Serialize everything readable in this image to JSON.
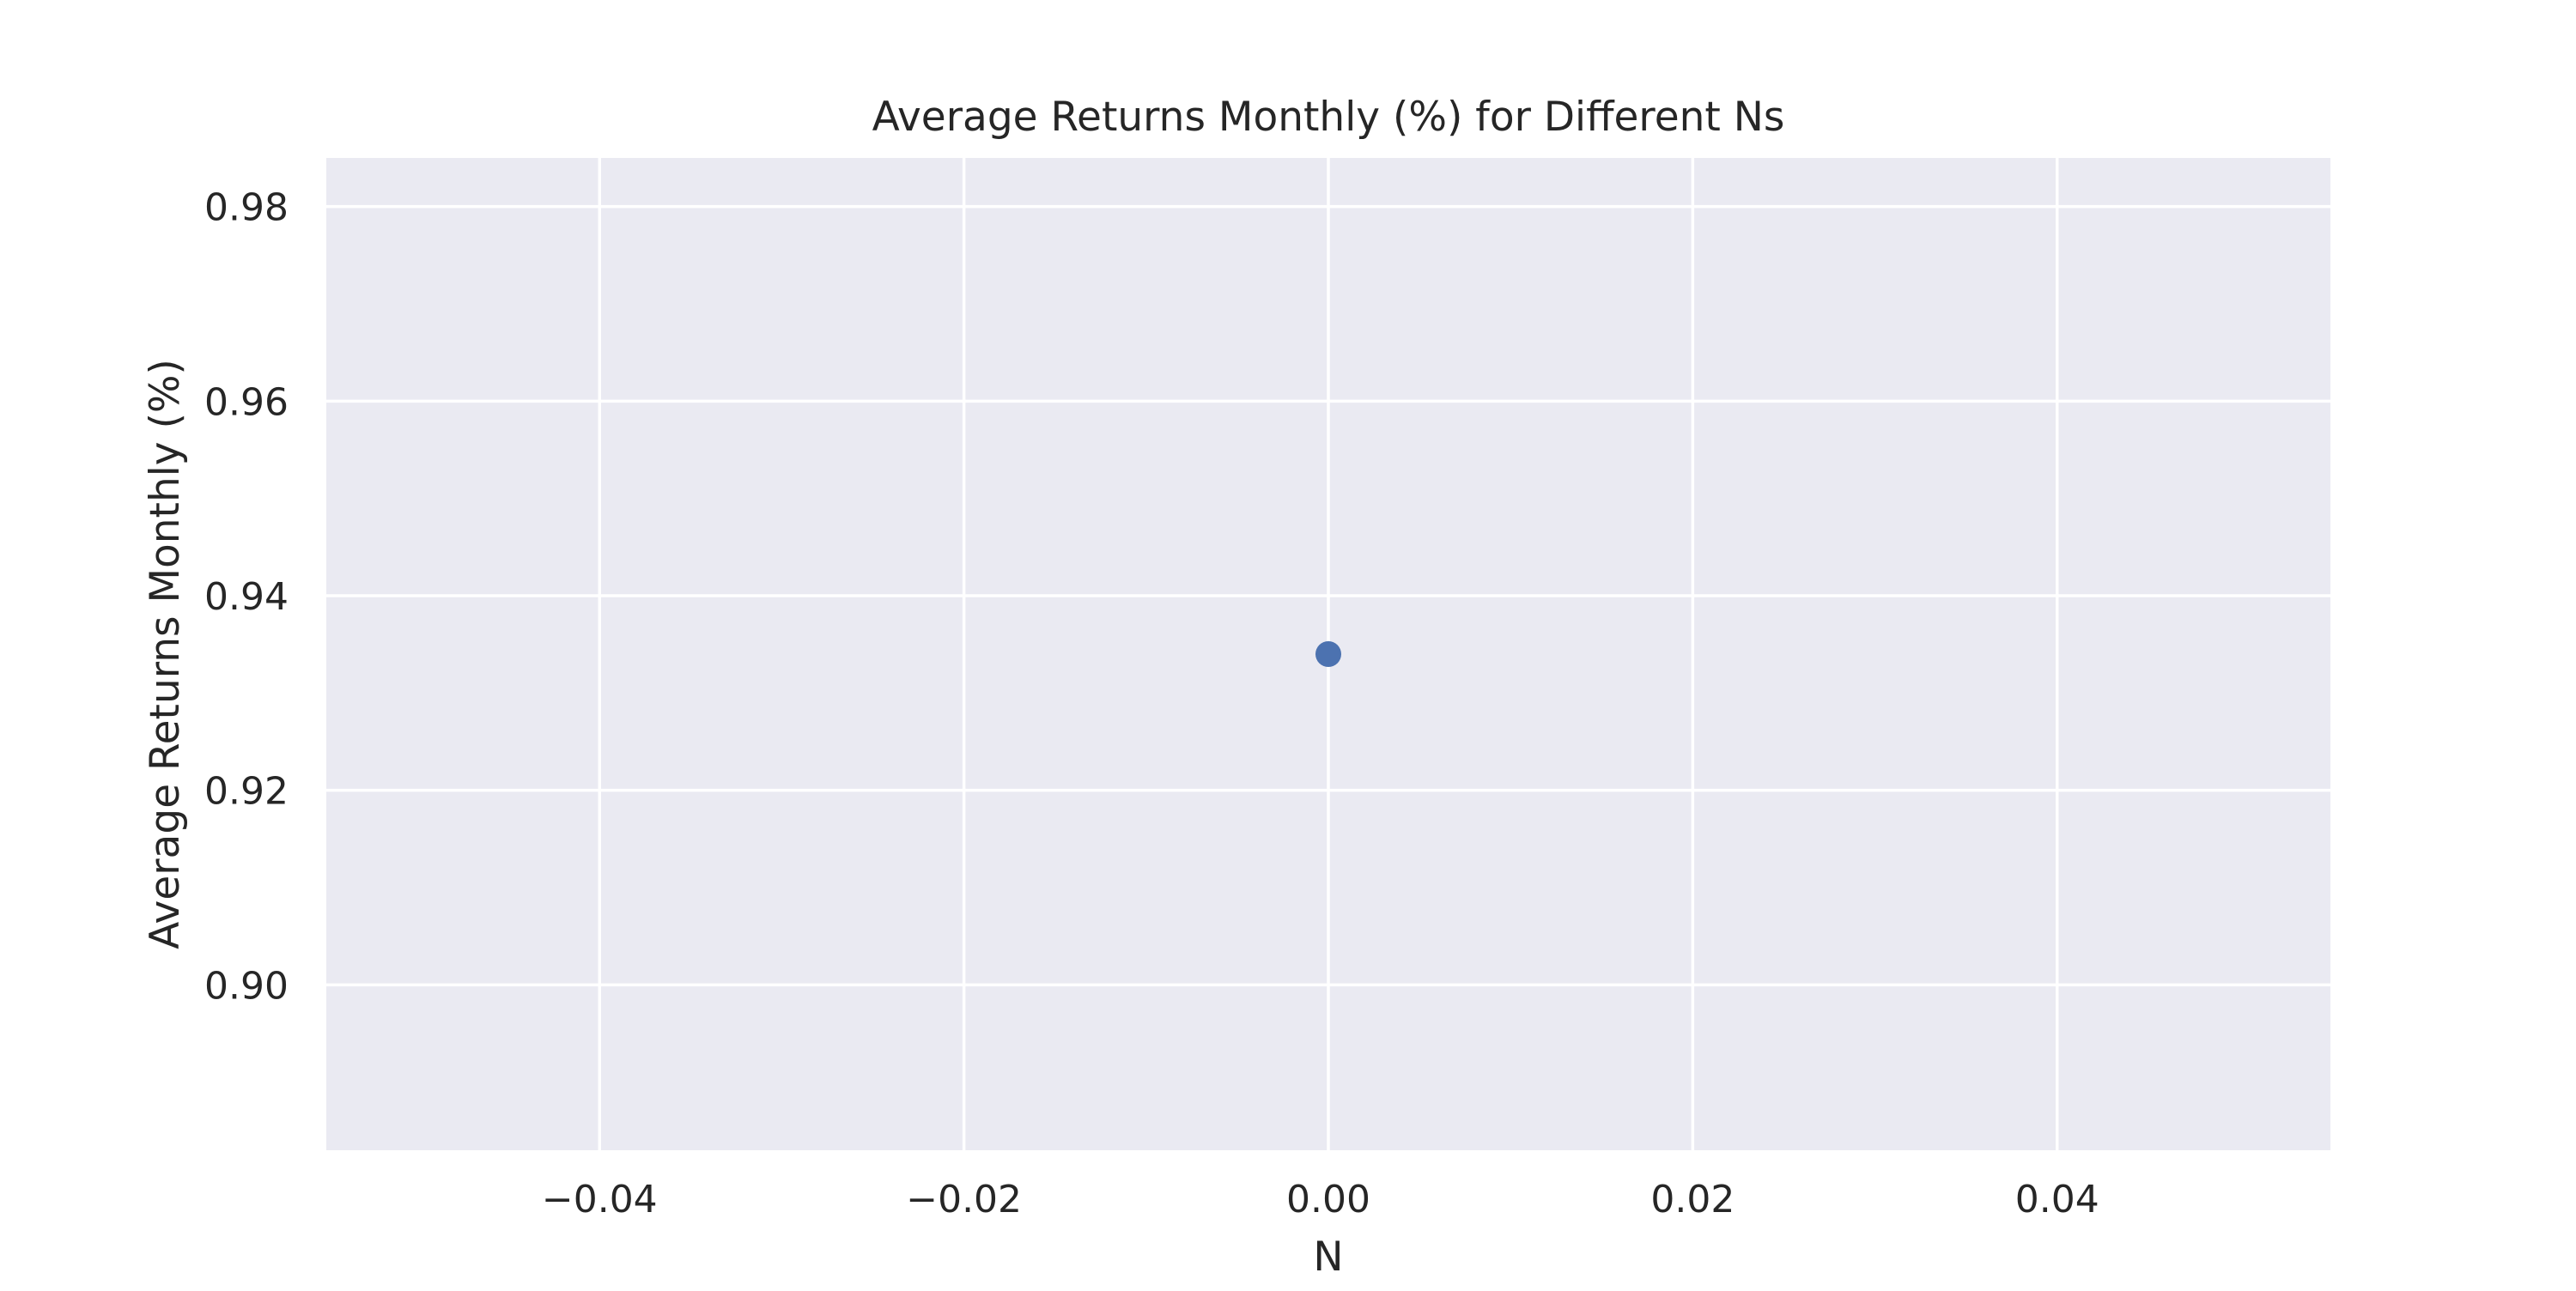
{
  "chart_data": {
    "type": "scatter",
    "title": "Average Returns Monthly (%) for Different Ns",
    "xlabel": "N",
    "ylabel": "Average Returns Monthly (%)",
    "xlim": [
      -0.055,
      0.055
    ],
    "ylim": [
      0.883,
      0.985
    ],
    "xticks": [
      -0.04,
      -0.02,
      0.0,
      0.02,
      0.04
    ],
    "xtick_labels": [
      "−0.04",
      "−0.02",
      "0.00",
      "0.02",
      "0.04"
    ],
    "yticks": [
      0.9,
      0.92,
      0.94,
      0.96,
      0.98
    ],
    "ytick_labels": [
      "0.90",
      "0.92",
      "0.94",
      "0.96",
      "0.98"
    ],
    "grid": true,
    "series": [
      {
        "color": "#4c72b0",
        "points": [
          {
            "x": 0.0,
            "y": 0.934
          }
        ]
      }
    ],
    "colors": {
      "plot_background": "#eaeaf2",
      "grid": "#ffffff",
      "text": "#262626"
    }
  }
}
